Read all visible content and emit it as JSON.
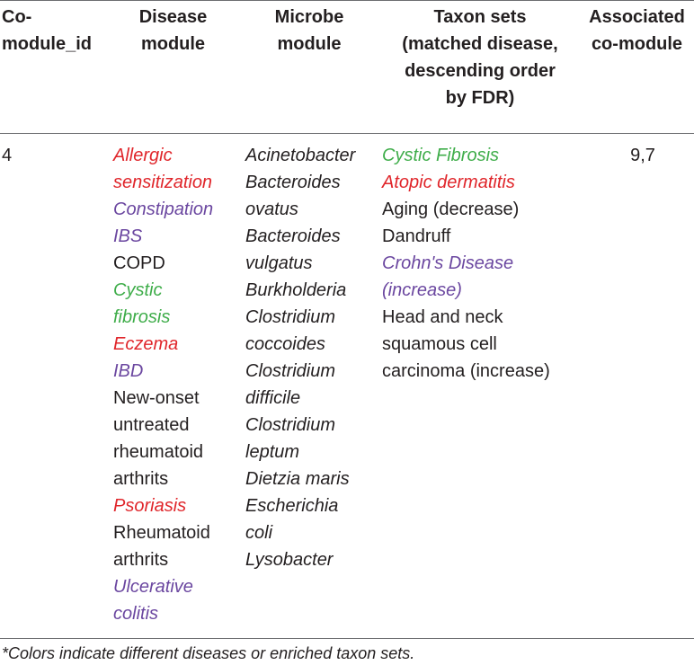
{
  "header": {
    "col1": [
      "Co-",
      "module_id"
    ],
    "col2": [
      "Disease",
      "module"
    ],
    "col3": [
      "Microbe",
      "module"
    ],
    "col4": [
      "Taxon sets",
      "(matched disease,",
      "descending order",
      "by FDR)"
    ],
    "col5": [
      "Associated",
      "co-module"
    ]
  },
  "row": {
    "id": "4",
    "disease_lines": [
      {
        "text": "Allergic",
        "color": "#e0262b",
        "italic": true
      },
      {
        "text": "sensitization",
        "color": "#e0262b",
        "italic": true
      },
      {
        "text": "Constipation",
        "color": "#6b47a0",
        "italic": true
      },
      {
        "text": "IBS",
        "color": "#6b47a0",
        "italic": true
      },
      {
        "text": "COPD",
        "color": "#231f20",
        "italic": false
      },
      {
        "text": "Cystic",
        "color": "#3fad4a",
        "italic": true
      },
      {
        "text": "fibrosis",
        "color": "#3fad4a",
        "italic": true
      },
      {
        "text": "Eczema",
        "color": "#e0262b",
        "italic": true
      },
      {
        "text": "IBD",
        "color": "#6b47a0",
        "italic": true
      },
      {
        "text": "New-onset",
        "color": "#231f20",
        "italic": false
      },
      {
        "text": "untreated",
        "color": "#231f20",
        "italic": false
      },
      {
        "text": "rheumatoid",
        "color": "#231f20",
        "italic": false
      },
      {
        "text": "arthrits",
        "color": "#231f20",
        "italic": false
      },
      {
        "text": "Psoriasis",
        "color": "#e0262b",
        "italic": true
      },
      {
        "text": "Rheumatoid",
        "color": "#231f20",
        "italic": false
      },
      {
        "text": "arthrits",
        "color": "#231f20",
        "italic": false
      },
      {
        "text": "Ulcerative",
        "color": "#6b47a0",
        "italic": true
      },
      {
        "text": "colitis",
        "color": "#6b47a0",
        "italic": true
      }
    ],
    "microbe_lines": [
      "Acinetobacter",
      "Bacteroides",
      "ovatus",
      "Bacteroides",
      "vulgatus",
      "Burkholderia",
      "Clostridium",
      "coccoides",
      "Clostridium",
      "difficile",
      "Clostridium",
      "leptum",
      "Dietzia maris",
      "Escherichia",
      "coli",
      "Lysobacter"
    ],
    "taxon_lines": [
      {
        "text": "Cystic Fibrosis",
        "color": "#3fad4a",
        "italic": true
      },
      {
        "text": "Atopic dermatitis",
        "color": "#e0262b",
        "italic": true
      },
      {
        "text": "Aging (decrease)",
        "color": "#231f20",
        "italic": false
      },
      {
        "text": "Dandruff",
        "color": "#231f20",
        "italic": false
      },
      {
        "text": "Crohn's Disease",
        "color": "#6b47a0",
        "italic": true
      },
      {
        "text": "(increase)",
        "color": "#6b47a0",
        "italic": true
      },
      {
        "text": "Head and neck",
        "color": "#231f20",
        "italic": false
      },
      {
        "text": "squamous cell",
        "color": "#231f20",
        "italic": false
      },
      {
        "text": "carcinoma (increase)",
        "color": "#231f20",
        "italic": false
      }
    ],
    "associated": "9,7"
  },
  "footnote": "*Colors indicate different diseases or enriched taxon sets."
}
